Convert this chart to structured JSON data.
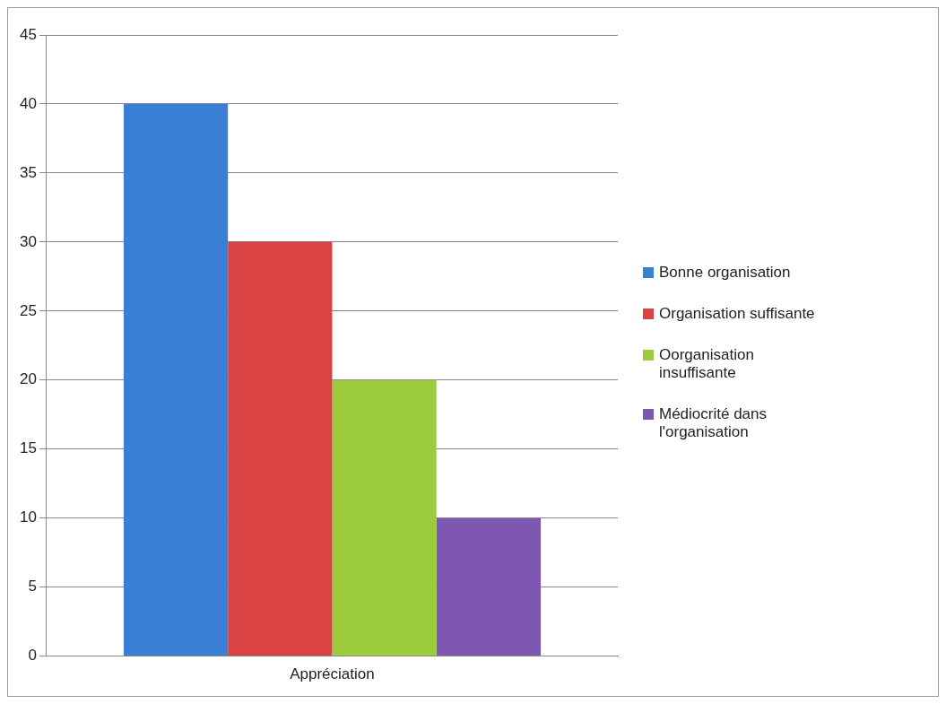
{
  "chart_data": {
    "type": "bar",
    "categories": [
      "Appréciation"
    ],
    "series": [
      {
        "name": "Bonne organisation",
        "color": "#3a7fd5",
        "values": [
          40
        ]
      },
      {
        "name": "Organisation suffisante",
        "color": "#d94343",
        "values": [
          30
        ]
      },
      {
        "name": "Oorganisation insuffisante",
        "color": "#9ccb3e",
        "values": [
          20
        ]
      },
      {
        "name": "Médiocrité dans l'organisation",
        "color": "#7d57b2",
        "values": [
          10
        ]
      }
    ],
    "ylim": [
      0,
      45
    ],
    "yticks": [
      0,
      5,
      10,
      15,
      20,
      25,
      30,
      35,
      40,
      45
    ],
    "grid": "y",
    "legend": "right"
  }
}
